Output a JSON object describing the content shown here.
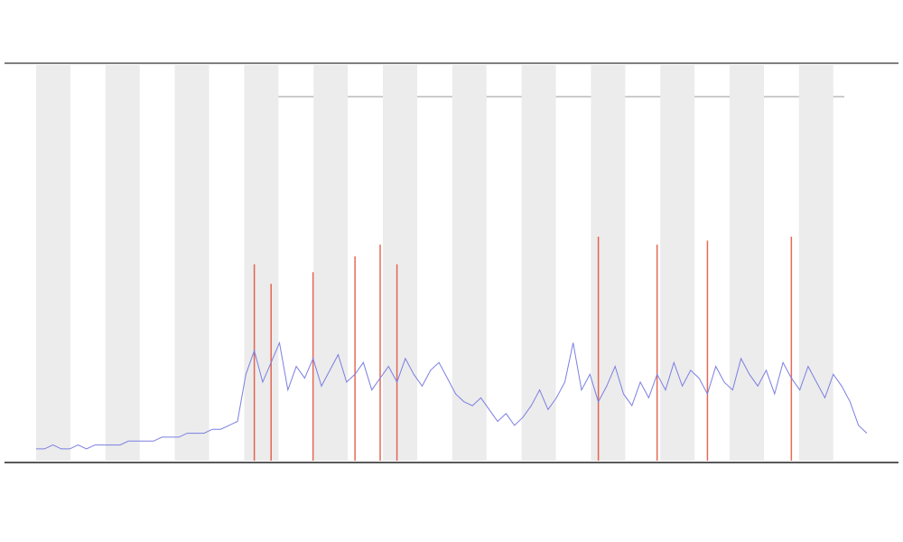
{
  "chart_data": {
    "type": "line",
    "ylim": [
      0,
      100
    ],
    "series": [
      {
        "color": "#7b7fe0",
        "values": [
          3,
          3,
          4,
          3,
          3,
          4,
          3,
          4,
          4,
          4,
          4,
          5,
          5,
          5,
          5,
          6,
          6,
          6,
          7,
          7,
          7,
          8,
          8,
          9,
          10,
          22,
          28,
          20,
          25,
          30,
          18,
          24,
          21,
          26,
          19,
          23,
          27,
          20,
          22,
          25,
          18,
          21,
          24,
          20,
          26,
          22,
          19,
          23,
          25,
          21,
          17,
          15,
          14,
          16,
          13,
          10,
          12,
          9,
          11,
          14,
          18,
          13,
          16,
          20,
          30,
          18,
          22,
          15,
          19,
          24,
          17,
          14,
          20,
          16,
          22,
          18,
          25,
          19,
          23,
          21,
          17,
          24,
          20,
          18,
          26,
          22,
          19,
          23,
          17,
          25,
          21,
          18,
          24,
          20,
          16,
          22,
          19,
          15,
          9,
          7
        ]
      },
      {
        "color": "#e0442c",
        "values": [
          null,
          null,
          null,
          null,
          null,
          null,
          null,
          null,
          null,
          null,
          null,
          null,
          null,
          null,
          null,
          null,
          null,
          null,
          null,
          null,
          null,
          null,
          null,
          null,
          null,
          null,
          50,
          null,
          45,
          null,
          null,
          null,
          null,
          48,
          null,
          null,
          null,
          null,
          52,
          null,
          null,
          55,
          null,
          50,
          null,
          null,
          null,
          null,
          null,
          null,
          null,
          null,
          null,
          null,
          null,
          null,
          null,
          null,
          null,
          null,
          null,
          null,
          null,
          null,
          null,
          null,
          null,
          57,
          null,
          null,
          null,
          null,
          null,
          null,
          55,
          null,
          null,
          null,
          null,
          null,
          56,
          null,
          null,
          null,
          null,
          null,
          null,
          null,
          null,
          null,
          57,
          null,
          null,
          null,
          null,
          null,
          null,
          null,
          null,
          null
        ]
      }
    ]
  }
}
